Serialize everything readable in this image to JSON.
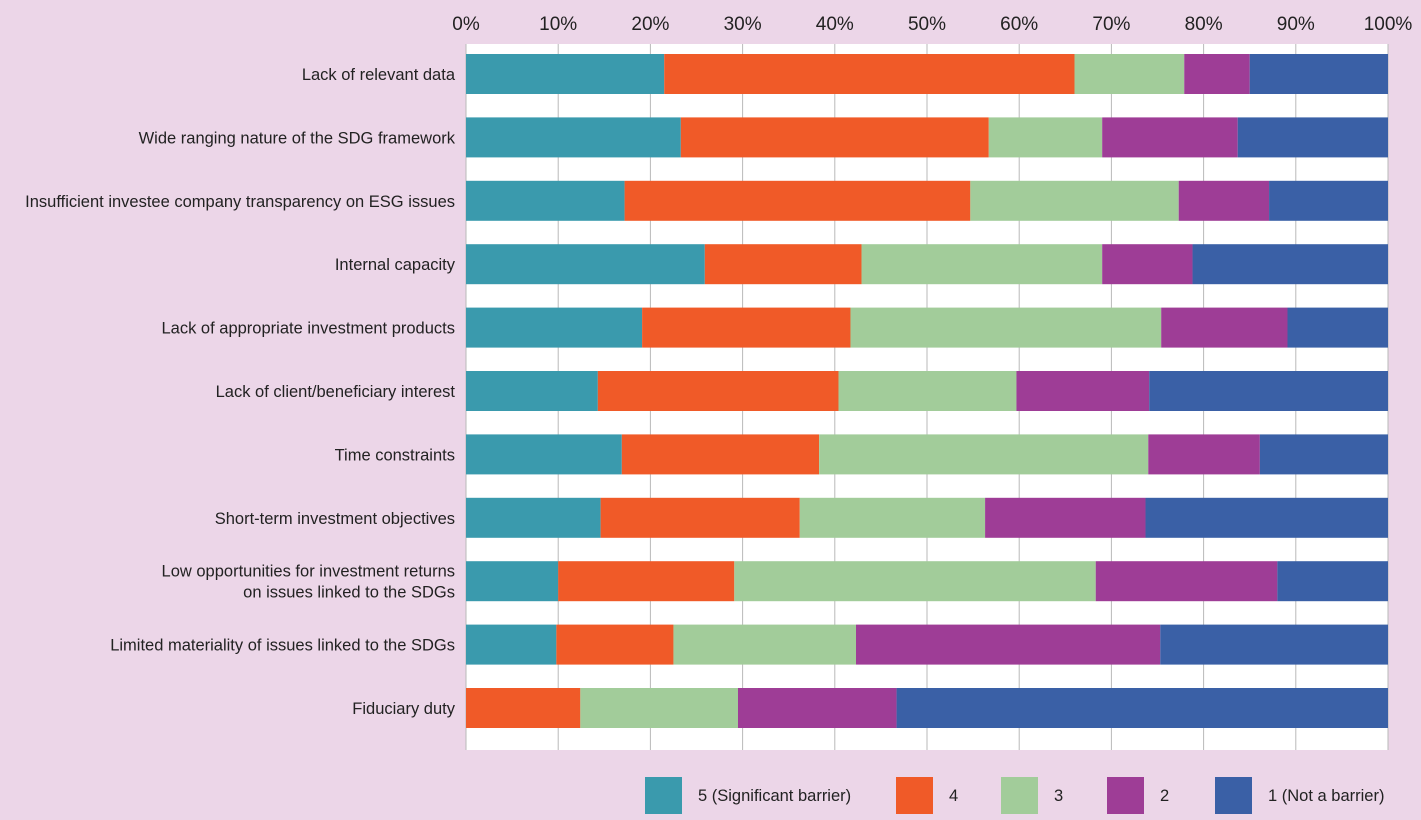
{
  "chart_data": {
    "type": "bar",
    "orientation": "horizontal",
    "stacked": "percent",
    "xlim": [
      0,
      100
    ],
    "ticks": [
      "0%",
      "10%",
      "20%",
      "30%",
      "40%",
      "50%",
      "60%",
      "70%",
      "80%",
      "90%",
      "100%"
    ],
    "grid": true,
    "legend_position": "bottom",
    "categories": [
      [
        "Lack of relevant data"
      ],
      [
        "Wide ranging nature of the SDG framework"
      ],
      [
        "Insufficient investee company transparency on ESG issues"
      ],
      [
        "Internal capacity"
      ],
      [
        "Lack of appropriate investment products"
      ],
      [
        "Lack of client/beneficiary interest"
      ],
      [
        "Time constraints"
      ],
      [
        "Short-term investment objectives"
      ],
      [
        "Low opportunities for investment returns",
        "on issues linked to the SDGs"
      ],
      [
        "Limited materiality of issues linked to the SDGs"
      ],
      [
        "Fiduciary duty"
      ]
    ],
    "series": [
      {
        "name": "5 (Significant barrier)",
        "color": "#3a9aad",
        "values": [
          21.5,
          23.3,
          17.2,
          25.9,
          19.1,
          14.3,
          16.9,
          14.6,
          10.0,
          9.8,
          0.0
        ]
      },
      {
        "name": "4",
        "color": "#f05a28",
        "values": [
          44.5,
          33.4,
          37.5,
          17.0,
          22.6,
          26.1,
          21.4,
          21.6,
          19.1,
          12.7,
          12.4
        ]
      },
      {
        "name": "3",
        "color": "#a2cc9a",
        "values": [
          11.9,
          12.3,
          22.6,
          26.1,
          33.7,
          19.3,
          35.7,
          20.1,
          39.2,
          19.8,
          17.1
        ]
      },
      {
        "name": "2",
        "color": "#9e3d96",
        "values": [
          7.1,
          14.7,
          9.8,
          9.8,
          13.7,
          14.4,
          12.1,
          17.4,
          19.7,
          33.0,
          17.2
        ]
      },
      {
        "name": "1 (Not a barrier)",
        "color": "#3a60a6",
        "values": [
          15.0,
          16.3,
          12.9,
          21.2,
          10.9,
          25.9,
          13.9,
          26.3,
          12.0,
          24.7,
          53.3
        ]
      }
    ]
  }
}
